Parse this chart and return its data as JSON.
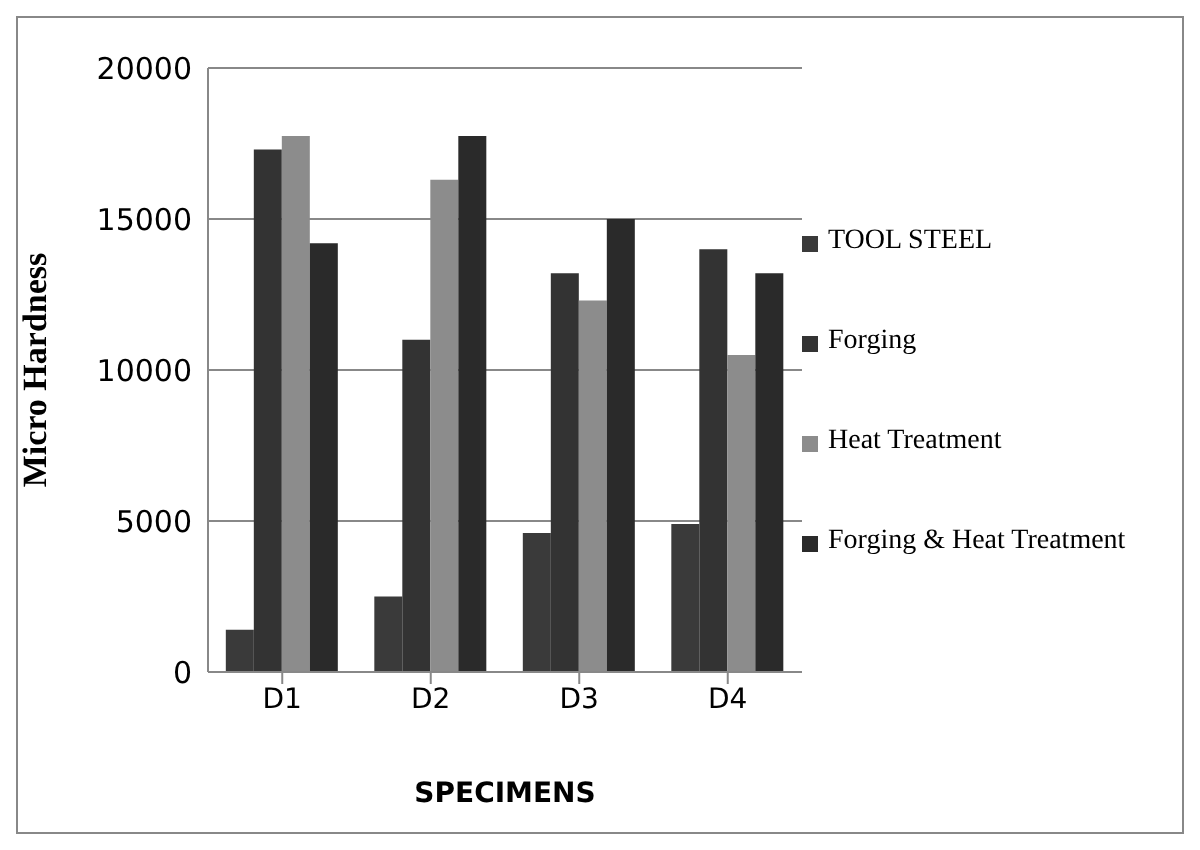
{
  "chart_data": {
    "type": "bar",
    "xlabel": "SPECIMENS",
    "ylabel": "Micro Hardness",
    "categories": [
      "D1",
      "D2",
      "D3",
      "D4"
    ],
    "series": [
      {
        "name": "TOOL STEEL",
        "color": "#3a3a3a",
        "values": [
          1400,
          2500,
          4600,
          4900
        ]
      },
      {
        "name": "Forging",
        "color": "#333333",
        "values": [
          17300,
          11000,
          13200,
          14000
        ]
      },
      {
        "name": "Heat Treatment",
        "color": "#8c8c8c",
        "values": [
          17750,
          16300,
          12300,
          10500
        ]
      },
      {
        "name": "Forging & Heat Treatment",
        "color": "#2a2a2a",
        "values": [
          14200,
          17750,
          15000,
          13200
        ]
      }
    ],
    "ylim": [
      0,
      20000
    ],
    "yticks": [
      0,
      5000,
      10000,
      15000,
      20000
    ],
    "grid": "y",
    "legend": "right"
  }
}
